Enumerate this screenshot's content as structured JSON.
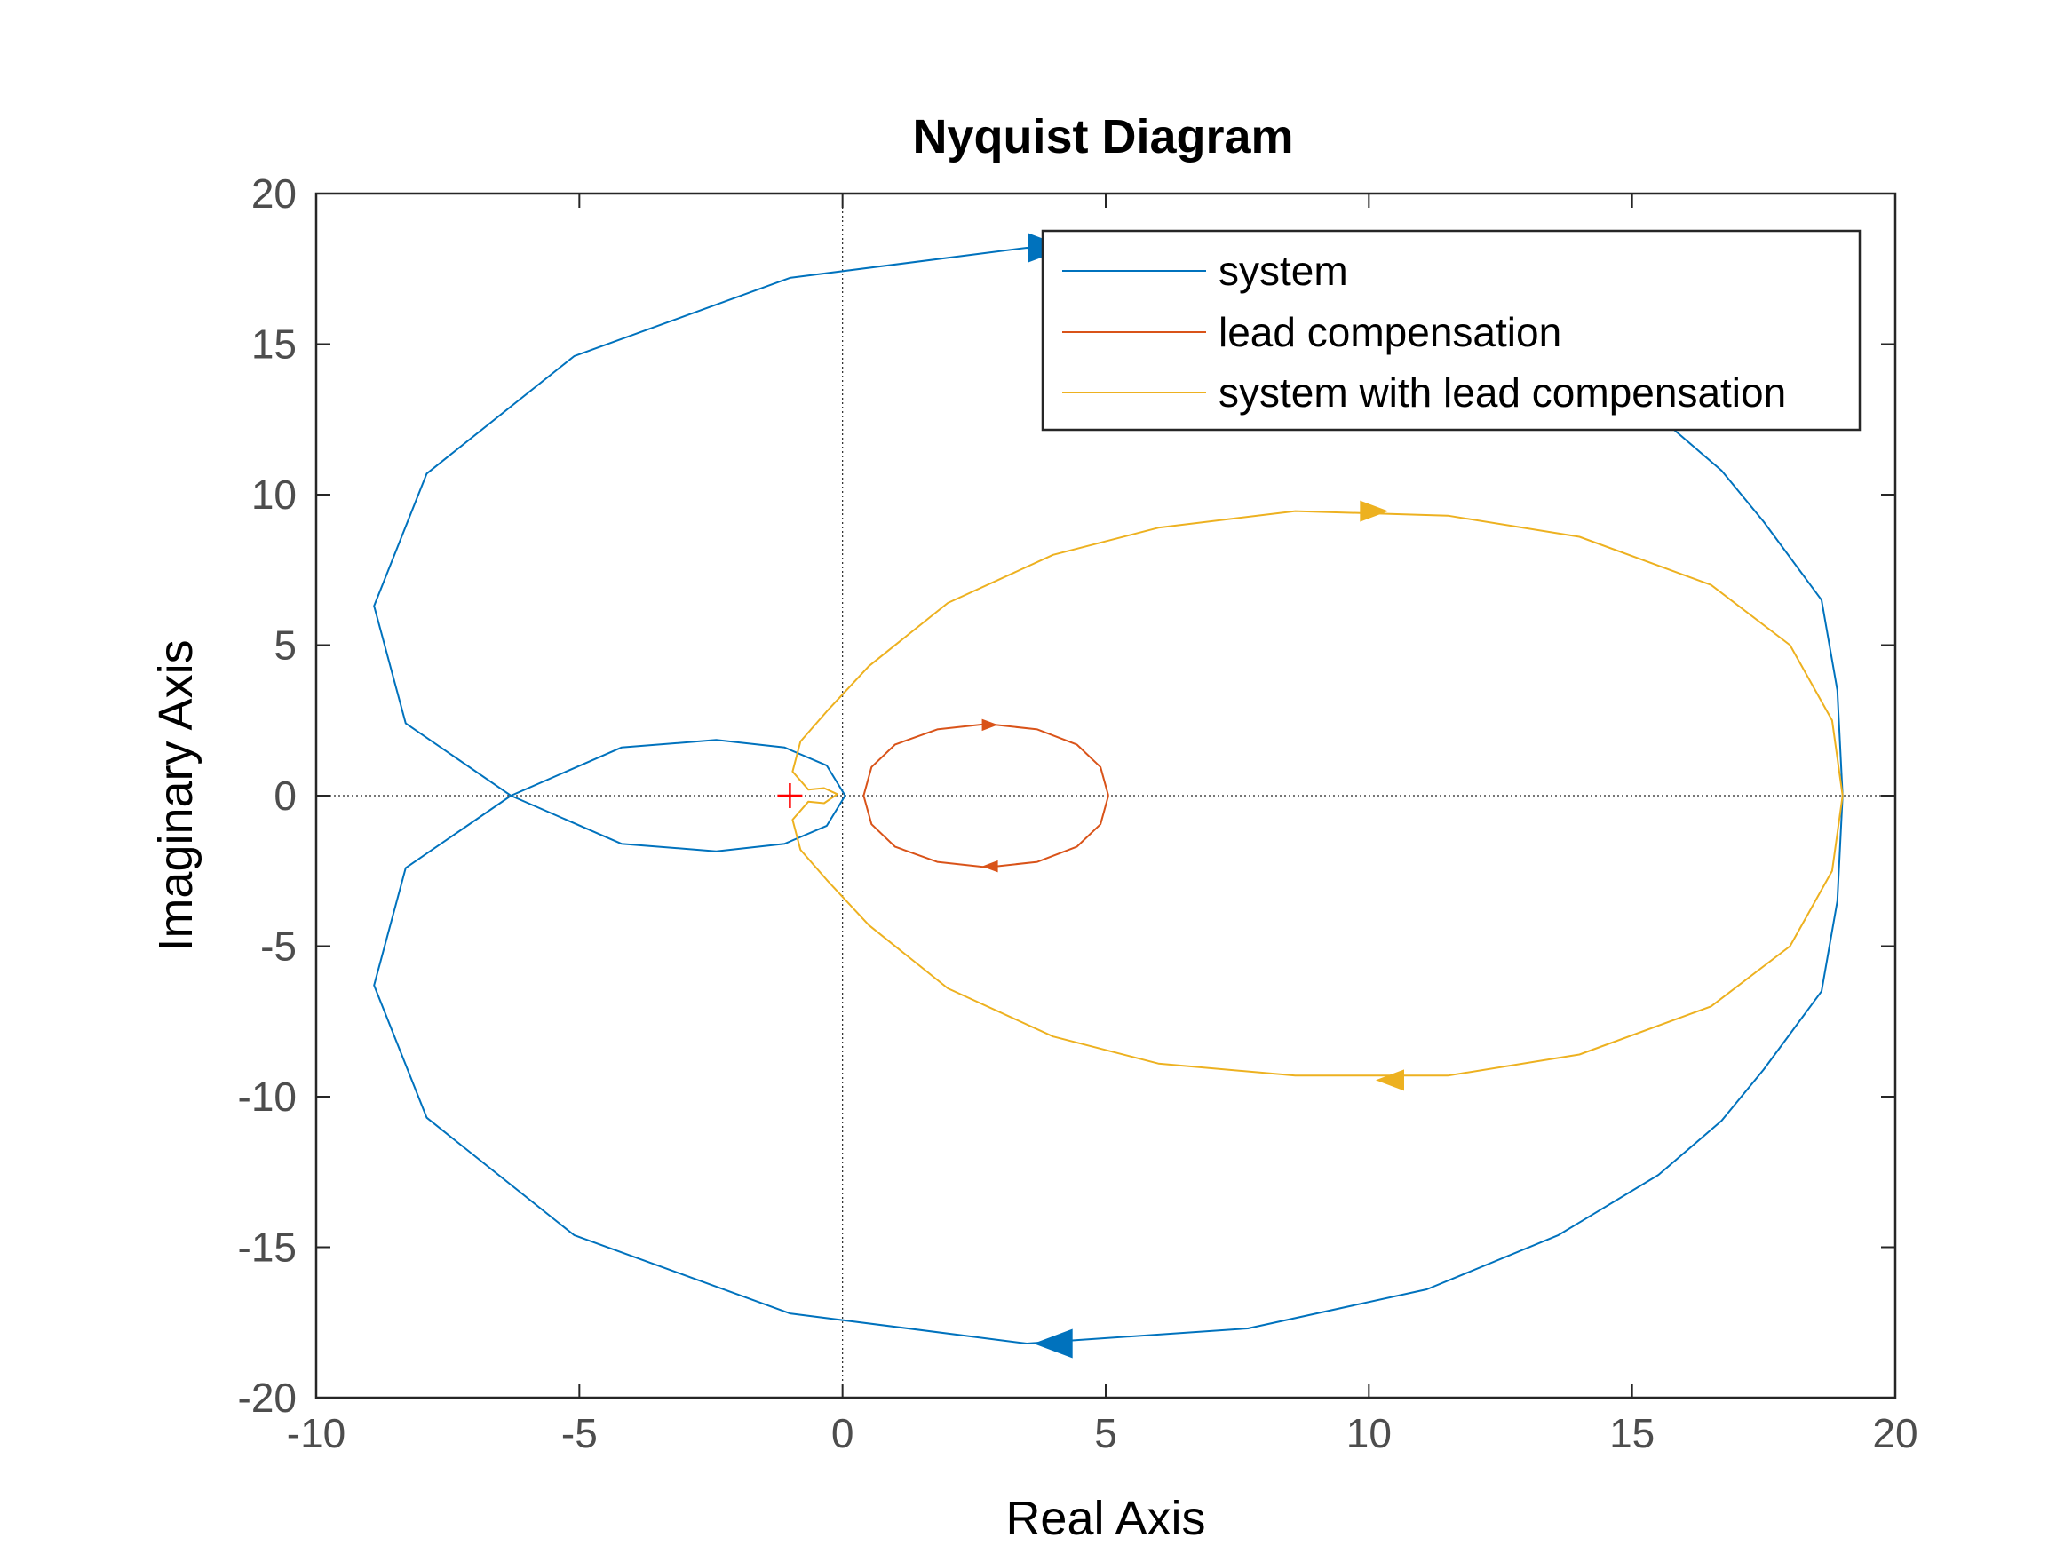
{
  "chart_data": {
    "type": "line",
    "title": "Nyquist Diagram",
    "xlabel": "Real Axis",
    "ylabel": "Imaginary Axis",
    "xlim": [
      -10,
      20
    ],
    "ylim": [
      -20,
      20
    ],
    "xticks": [
      "-10",
      "-5",
      "0",
      "5",
      "10",
      "15",
      "20"
    ],
    "yticks": [
      "20",
      "15",
      "10",
      "5",
      "0",
      "-5",
      "-10",
      "-15",
      "-20"
    ],
    "grid": false,
    "reference_lines": [
      "x = 0 (dotted)",
      "y = 0 (dotted)"
    ],
    "critical_point": {
      "x": -1,
      "y": 0,
      "marker": "+",
      "color": "#ff0000"
    },
    "legend": {
      "position": "top-right"
    },
    "series": [
      {
        "name": "system",
        "color": "#0072bd",
        "arrows": [
          {
            "x": 3.9,
            "y": 18.2
          },
          {
            "x": 4.0,
            "y": -18.2
          }
        ],
        "points": [
          {
            "x": 19.0,
            "y": 0.0
          },
          {
            "x": 18.9,
            "y": 3.5
          },
          {
            "x": 18.6,
            "y": 6.5
          },
          {
            "x": 17.5,
            "y": 9.1
          },
          {
            "x": 16.7,
            "y": 10.8
          },
          {
            "x": 15.5,
            "y": 12.6
          },
          {
            "x": 13.6,
            "y": 14.6
          },
          {
            "x": 11.1,
            "y": 16.4
          },
          {
            "x": 7.7,
            "y": 17.7
          },
          {
            "x": 3.5,
            "y": 18.2
          },
          {
            "x": -1.0,
            "y": 17.2
          },
          {
            "x": -5.1,
            "y": 14.6
          },
          {
            "x": -7.9,
            "y": 10.7
          },
          {
            "x": -8.9,
            "y": 6.3
          },
          {
            "x": -8.3,
            "y": 2.4
          },
          {
            "x": -6.3,
            "y": 0.0
          },
          {
            "x": -4.2,
            "y": -1.6
          },
          {
            "x": -2.4,
            "y": -1.85
          },
          {
            "x": -1.1,
            "y": -1.6
          },
          {
            "x": -0.3,
            "y": -1.0
          },
          {
            "x": 0.05,
            "y": 0.0
          },
          {
            "x": -0.3,
            "y": 1.0
          },
          {
            "x": -1.1,
            "y": 1.6
          },
          {
            "x": -2.4,
            "y": 1.85
          },
          {
            "x": -4.2,
            "y": 1.6
          },
          {
            "x": -6.3,
            "y": 0.0
          },
          {
            "x": -8.3,
            "y": -2.4
          },
          {
            "x": -8.9,
            "y": -6.3
          },
          {
            "x": -7.9,
            "y": -10.7
          },
          {
            "x": -5.1,
            "y": -14.6
          },
          {
            "x": -1.0,
            "y": -17.2
          },
          {
            "x": 3.5,
            "y": -18.2
          },
          {
            "x": 7.7,
            "y": -17.7
          },
          {
            "x": 11.1,
            "y": -16.4
          },
          {
            "x": 13.6,
            "y": -14.6
          },
          {
            "x": 15.5,
            "y": -12.6
          },
          {
            "x": 16.7,
            "y": -10.8
          },
          {
            "x": 17.5,
            "y": -9.1
          },
          {
            "x": 18.6,
            "y": -6.5
          },
          {
            "x": 18.9,
            "y": -3.5
          },
          {
            "x": 19.0,
            "y": 0.0
          }
        ]
      },
      {
        "name": "lead compensation",
        "color": "#d95319",
        "arrows": [
          {
            "x": 2.8,
            "y": 2.35
          },
          {
            "x": 2.8,
            "y": -2.35
          }
        ],
        "points": [
          {
            "x": 5.05,
            "y": 0.0
          },
          {
            "x": 4.9,
            "y": 0.95
          },
          {
            "x": 4.45,
            "y": 1.7
          },
          {
            "x": 3.7,
            "y": 2.2
          },
          {
            "x": 2.75,
            "y": 2.38
          },
          {
            "x": 1.8,
            "y": 2.2
          },
          {
            "x": 1.0,
            "y": 1.7
          },
          {
            "x": 0.55,
            "y": 0.95
          },
          {
            "x": 0.4,
            "y": 0.0
          },
          {
            "x": 0.55,
            "y": -0.95
          },
          {
            "x": 1.0,
            "y": -1.7
          },
          {
            "x": 1.8,
            "y": -2.2
          },
          {
            "x": 2.75,
            "y": -2.38
          },
          {
            "x": 3.7,
            "y": -2.2
          },
          {
            "x": 4.45,
            "y": -1.7
          },
          {
            "x": 4.9,
            "y": -0.95
          },
          {
            "x": 5.05,
            "y": 0.0
          }
        ]
      },
      {
        "name": "system with lead compensation",
        "color": "#edb120",
        "arrows": [
          {
            "x": 10.1,
            "y": 9.45
          },
          {
            "x": 10.4,
            "y": -9.45
          }
        ],
        "points": [
          {
            "x": 19.0,
            "y": 0.0
          },
          {
            "x": 18.8,
            "y": 2.5
          },
          {
            "x": 18.0,
            "y": 5.0
          },
          {
            "x": 16.5,
            "y": 7.0
          },
          {
            "x": 14.0,
            "y": 8.6
          },
          {
            "x": 11.5,
            "y": 9.3
          },
          {
            "x": 8.6,
            "y": 9.45
          },
          {
            "x": 6.0,
            "y": 8.9
          },
          {
            "x": 4.0,
            "y": 8.0
          },
          {
            "x": 2.0,
            "y": 6.4
          },
          {
            "x": 0.5,
            "y": 4.3
          },
          {
            "x": -0.3,
            "y": 2.8
          },
          {
            "x": -0.8,
            "y": 1.8
          },
          {
            "x": -0.95,
            "y": 0.8
          },
          {
            "x": -0.65,
            "y": 0.2
          },
          {
            "x": -0.35,
            "y": 0.25
          },
          {
            "x": -0.1,
            "y": 0.05
          },
          {
            "x": -0.35,
            "y": -0.25
          },
          {
            "x": -0.65,
            "y": -0.2
          },
          {
            "x": -0.95,
            "y": -0.8
          },
          {
            "x": -0.8,
            "y": -1.8
          },
          {
            "x": -0.3,
            "y": -2.8
          },
          {
            "x": 0.5,
            "y": -4.3
          },
          {
            "x": 2.0,
            "y": -6.4
          },
          {
            "x": 4.0,
            "y": -8.0
          },
          {
            "x": 6.0,
            "y": -8.9
          },
          {
            "x": 8.6,
            "y": -9.3
          },
          {
            "x": 11.5,
            "y": -9.3
          },
          {
            "x": 14.0,
            "y": -8.6
          },
          {
            "x": 16.5,
            "y": -7.0
          },
          {
            "x": 18.0,
            "y": -5.0
          },
          {
            "x": 18.8,
            "y": -2.5
          },
          {
            "x": 19.0,
            "y": 0.0
          }
        ]
      }
    ]
  }
}
